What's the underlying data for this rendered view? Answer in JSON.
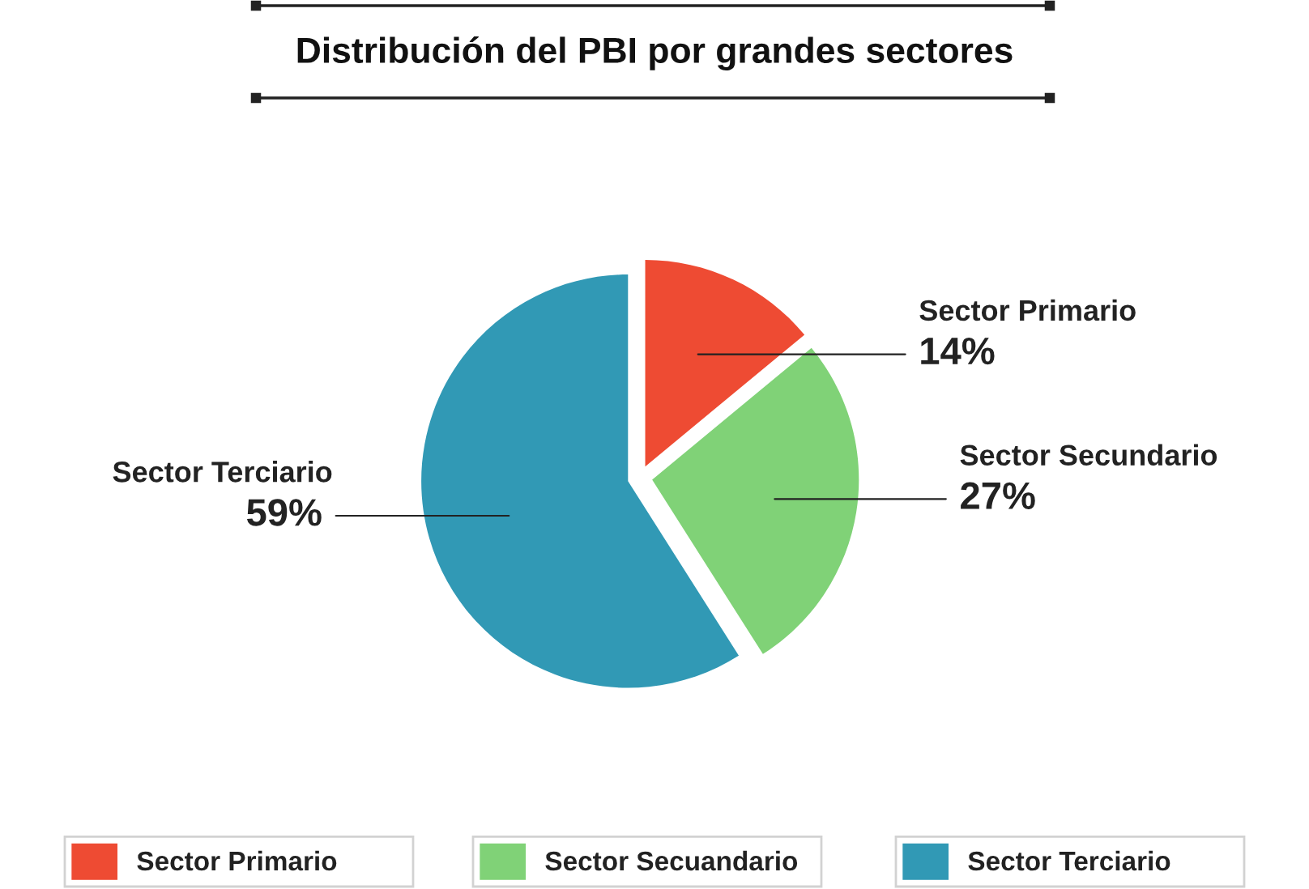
{
  "chart_data": {
    "type": "pie",
    "title": "Distribución del PBI por grandes sectores",
    "categories": [
      "Sector Primario",
      "Sector Secuandario",
      "Sector Terciario"
    ],
    "values": [
      14,
      27,
      59
    ],
    "value_labels": [
      "14%",
      "27%",
      "59%"
    ],
    "colors": [
      "#ee4b33",
      "#80d277",
      "#3199b5"
    ],
    "annotations": [
      "Sector Primario",
      "Sector Secundario",
      "Sector Terciario"
    ],
    "legend": "bottom"
  }
}
